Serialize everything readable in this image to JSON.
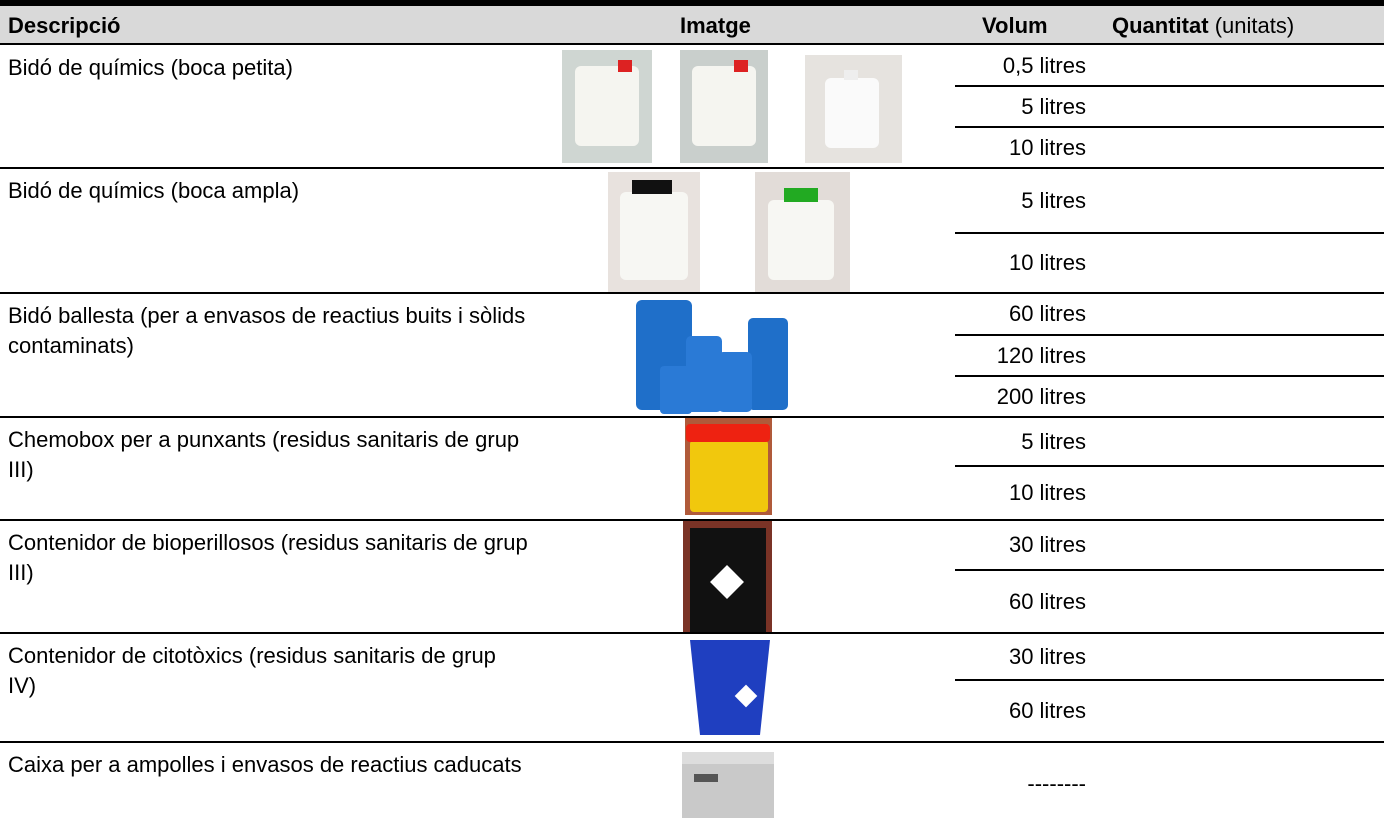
{
  "table": {
    "header": {
      "description": "Descripció",
      "image": "Imatge",
      "volume": "Volum",
      "quantity": "Quantitat",
      "quantity_unit": "(unitats)"
    },
    "rows": [
      {
        "description": "Bidó de químics (boca petita)",
        "volumes": [
          "0,5 litres",
          "5 litres",
          "10 litres"
        ]
      },
      {
        "description": "Bidó de químics (boca ampla)",
        "volumes": [
          "5 litres",
          "10 litres"
        ]
      },
      {
        "description": "Bidó ballesta (per a envasos de reactius buits i sòlids contaminats)",
        "volumes": [
          "60 litres",
          "120 litres",
          "200 litres"
        ]
      },
      {
        "description": "Chemobox per a punxants (residus sanitaris de grup III)",
        "volumes": [
          "5 litres",
          "10 litres"
        ]
      },
      {
        "description": "Contenidor de bioperillosos (residus sanitaris de grup III)",
        "volumes": [
          "30 litres",
          "60 litres"
        ]
      },
      {
        "description": "Contenidor de citotòxics (residus sanitaris de grup IV)",
        "volumes": [
          "30 litres",
          "60 litres"
        ]
      },
      {
        "description": "Caixa per a ampolles i envasos de reactius caducats",
        "volumes": [
          "--------"
        ]
      }
    ]
  }
}
